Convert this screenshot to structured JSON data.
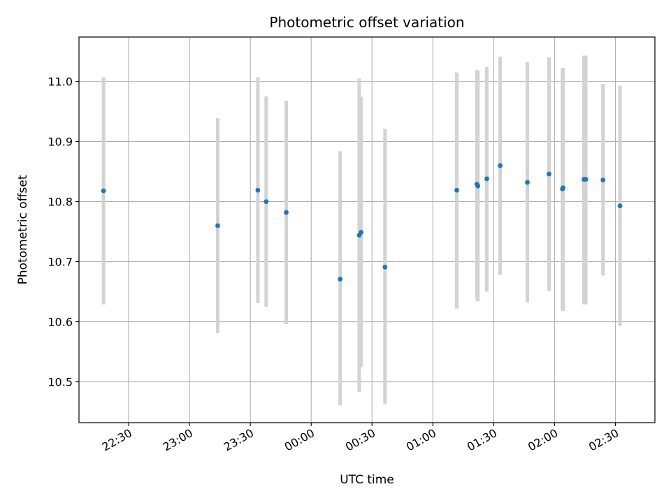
{
  "chart_data": {
    "type": "scatter",
    "title": "Photometric offset variation",
    "xlabel": "UTC time",
    "ylabel": "Photometric offset",
    "grid": true,
    "x_ticks": [
      "22:30",
      "23:00",
      "23:30",
      "00:00",
      "00:30",
      "01:00",
      "01:30",
      "02:00",
      "02:30"
    ],
    "y_ticks": [
      "10.5",
      "10.6",
      "10.7",
      "10.8",
      "10.9",
      "11.0"
    ],
    "x_tick_minutes": [
      1350,
      1380,
      1410,
      1440,
      1470,
      1500,
      1530,
      1560,
      1590
    ],
    "y_tick_values": [
      10.5,
      10.6,
      10.7,
      10.8,
      10.9,
      11.0
    ],
    "xlim_minutes": [
      1325.5,
      1609.5
    ],
    "ylim": [
      10.432,
      11.074
    ],
    "point_color": "#1f77b4",
    "errorbar_color": "#d3d3d3",
    "series": [
      {
        "x_minutes": [
          1337.6,
          1393.9,
          1413.7,
          1417.8,
          1427.7,
          1454.3,
          1463.7,
          1464.6,
          1476.4,
          1511.8,
          1521.7,
          1522.2,
          1526.6,
          1533.2,
          1546.6,
          1557.3,
          1563.9,
          1564.2,
          1574.5,
          1575.4,
          1583.9,
          1592.3
        ],
        "y": [
          10.818,
          10.76,
          10.819,
          10.8,
          10.782,
          10.671,
          10.744,
          10.749,
          10.691,
          10.819,
          10.829,
          10.826,
          10.838,
          10.86,
          10.832,
          10.846,
          10.821,
          10.823,
          10.837,
          10.837,
          10.836,
          10.793
        ],
        "y_low": [
          10.629,
          10.581,
          10.631,
          10.625,
          10.596,
          10.461,
          10.483,
          10.525,
          10.463,
          10.622,
          10.637,
          10.634,
          10.65,
          10.678,
          10.632,
          10.651,
          10.62,
          10.618,
          10.629,
          10.629,
          10.677,
          10.593
        ],
        "y_high": [
          11.007,
          10.939,
          11.007,
          10.975,
          10.968,
          10.884,
          11.005,
          10.974,
          10.921,
          11.015,
          11.019,
          11.017,
          11.024,
          11.041,
          11.032,
          11.04,
          11.022,
          11.023,
          11.043,
          11.043,
          10.996,
          10.993
        ]
      }
    ]
  }
}
